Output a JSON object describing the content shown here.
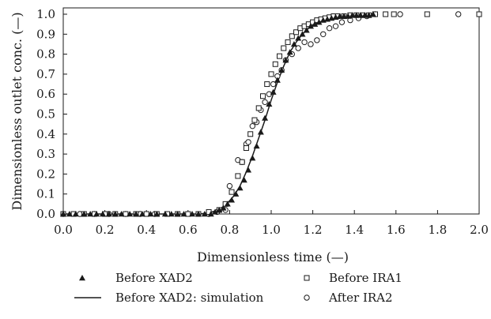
{
  "chart_data": {
    "type": "scatter",
    "xlabel": "Dimensionless time (—)",
    "ylabel": "Dimensionless outlet conc. (—)",
    "xlim": [
      0,
      2.0
    ],
    "ylim": [
      0,
      1.05
    ],
    "x_ticks": [
      "0.0",
      "0.2",
      "0.4",
      "0.6",
      "0.8",
      "1.0",
      "1.2",
      "1.4",
      "1.6",
      "1.8",
      "2.0"
    ],
    "y_ticks": [
      "0.0",
      "0.1",
      "0.2",
      "0.3",
      "0.4",
      "0.5",
      "0.6",
      "0.7",
      "0.8",
      "0.9",
      "1.0"
    ],
    "grid": false,
    "legend_position": "bottom",
    "series": [
      {
        "name": "Before XAD2",
        "marker": "triangle",
        "color": "#1a1a1a",
        "x": [
          0.0,
          0.03,
          0.06,
          0.1,
          0.13,
          0.16,
          0.19,
          0.22,
          0.25,
          0.28,
          0.32,
          0.35,
          0.38,
          0.42,
          0.45,
          0.49,
          0.52,
          0.55,
          0.58,
          0.62,
          0.65,
          0.68,
          0.71,
          0.73,
          0.75,
          0.77,
          0.79,
          0.81,
          0.83,
          0.85,
          0.87,
          0.89,
          0.91,
          0.93,
          0.95,
          0.97,
          0.99,
          1.01,
          1.03,
          1.05,
          1.07,
          1.09,
          1.11,
          1.13,
          1.15,
          1.17,
          1.19,
          1.21,
          1.23,
          1.25,
          1.27,
          1.29,
          1.31,
          1.33,
          1.35,
          1.37,
          1.39,
          1.41,
          1.43,
          1.45,
          1.47,
          1.49
        ],
        "y": [
          0.0,
          0.0,
          0.0,
          0.0,
          0.0,
          0.0,
          0.0,
          0.0,
          0.0,
          0.0,
          0.0,
          0.0,
          0.0,
          0.0,
          0.0,
          0.0,
          0.0,
          0.0,
          0.0,
          0.0,
          0.0,
          0.0,
          0.0,
          0.01,
          0.02,
          0.03,
          0.05,
          0.07,
          0.1,
          0.13,
          0.17,
          0.22,
          0.28,
          0.34,
          0.41,
          0.48,
          0.55,
          0.61,
          0.67,
          0.72,
          0.77,
          0.81,
          0.85,
          0.88,
          0.9,
          0.92,
          0.94,
          0.95,
          0.96,
          0.97,
          0.975,
          0.98,
          0.985,
          0.99,
          0.99,
          0.99,
          0.995,
          0.995,
          0.995,
          0.995,
          0.995,
          1.0
        ]
      },
      {
        "name": "Before XAD2: simulation",
        "marker": "line",
        "color": "#1a1a1a",
        "x": [
          0.0,
          0.65,
          0.7,
          0.73,
          0.76,
          0.79,
          0.82,
          0.85,
          0.88,
          0.91,
          0.94,
          0.97,
          1.0,
          1.03,
          1.06,
          1.09,
          1.12,
          1.15,
          1.18,
          1.21,
          1.25,
          1.3,
          1.35,
          1.4,
          1.45,
          1.5
        ],
        "y": [
          0.0,
          0.0,
          0.005,
          0.015,
          0.03,
          0.055,
          0.09,
          0.14,
          0.21,
          0.29,
          0.38,
          0.47,
          0.57,
          0.66,
          0.74,
          0.81,
          0.86,
          0.9,
          0.93,
          0.95,
          0.97,
          0.985,
          0.99,
          0.995,
          0.998,
          1.0
        ]
      },
      {
        "name": "Before IRA1",
        "marker": "square",
        "color": "#1a1a1a",
        "x": [
          0.0,
          0.05,
          0.1,
          0.15,
          0.2,
          0.25,
          0.3,
          0.35,
          0.4,
          0.45,
          0.5,
          0.55,
          0.6,
          0.65,
          0.7,
          0.75,
          0.78,
          0.81,
          0.84,
          0.86,
          0.88,
          0.9,
          0.92,
          0.94,
          0.96,
          0.98,
          1.0,
          1.02,
          1.04,
          1.06,
          1.08,
          1.1,
          1.12,
          1.14,
          1.16,
          1.18,
          1.2,
          1.22,
          1.24,
          1.26,
          1.28,
          1.3,
          1.32,
          1.35,
          1.38,
          1.41,
          1.44,
          1.47,
          1.5,
          1.55,
          1.59,
          1.75,
          2.0
        ],
        "y": [
          0.0,
          0.0,
          0.0,
          0.0,
          0.0,
          0.0,
          0.0,
          0.0,
          0.0,
          0.0,
          0.0,
          0.0,
          0.0,
          0.0,
          0.01,
          0.02,
          0.05,
          0.11,
          0.19,
          0.26,
          0.33,
          0.4,
          0.47,
          0.53,
          0.59,
          0.65,
          0.7,
          0.75,
          0.79,
          0.83,
          0.86,
          0.89,
          0.91,
          0.93,
          0.94,
          0.95,
          0.96,
          0.97,
          0.975,
          0.98,
          0.985,
          0.99,
          0.99,
          0.99,
          0.995,
          0.995,
          0.995,
          0.995,
          1.0,
          1.0,
          1.0,
          1.0,
          1.0
        ]
      },
      {
        "name": "After IRA2",
        "marker": "circle",
        "color": "#1a1a1a",
        "x": [
          0.0,
          0.08,
          0.15,
          0.22,
          0.3,
          0.37,
          0.44,
          0.7,
          0.74,
          0.78,
          0.8,
          0.84,
          0.86,
          0.88,
          0.89,
          0.91,
          0.93,
          0.95,
          0.97,
          0.99,
          1.01,
          1.03,
          1.05,
          1.07,
          1.1,
          1.13,
          1.16,
          1.19,
          1.22,
          1.25,
          1.28,
          1.31,
          1.34,
          1.38,
          1.42,
          1.46,
          1.5,
          1.62,
          1.9
        ],
        "y": [
          0.0,
          0.0,
          0.0,
          0.0,
          0.0,
          0.0,
          0.0,
          0.0,
          0.01,
          0.02,
          0.14,
          0.27,
          0.26,
          0.35,
          0.36,
          0.44,
          0.46,
          0.52,
          0.56,
          0.6,
          0.65,
          0.69,
          0.72,
          0.77,
          0.8,
          0.83,
          0.86,
          0.85,
          0.87,
          0.9,
          0.93,
          0.94,
          0.96,
          0.97,
          0.98,
          0.99,
          1.0,
          1.0,
          1.0
        ]
      }
    ]
  }
}
